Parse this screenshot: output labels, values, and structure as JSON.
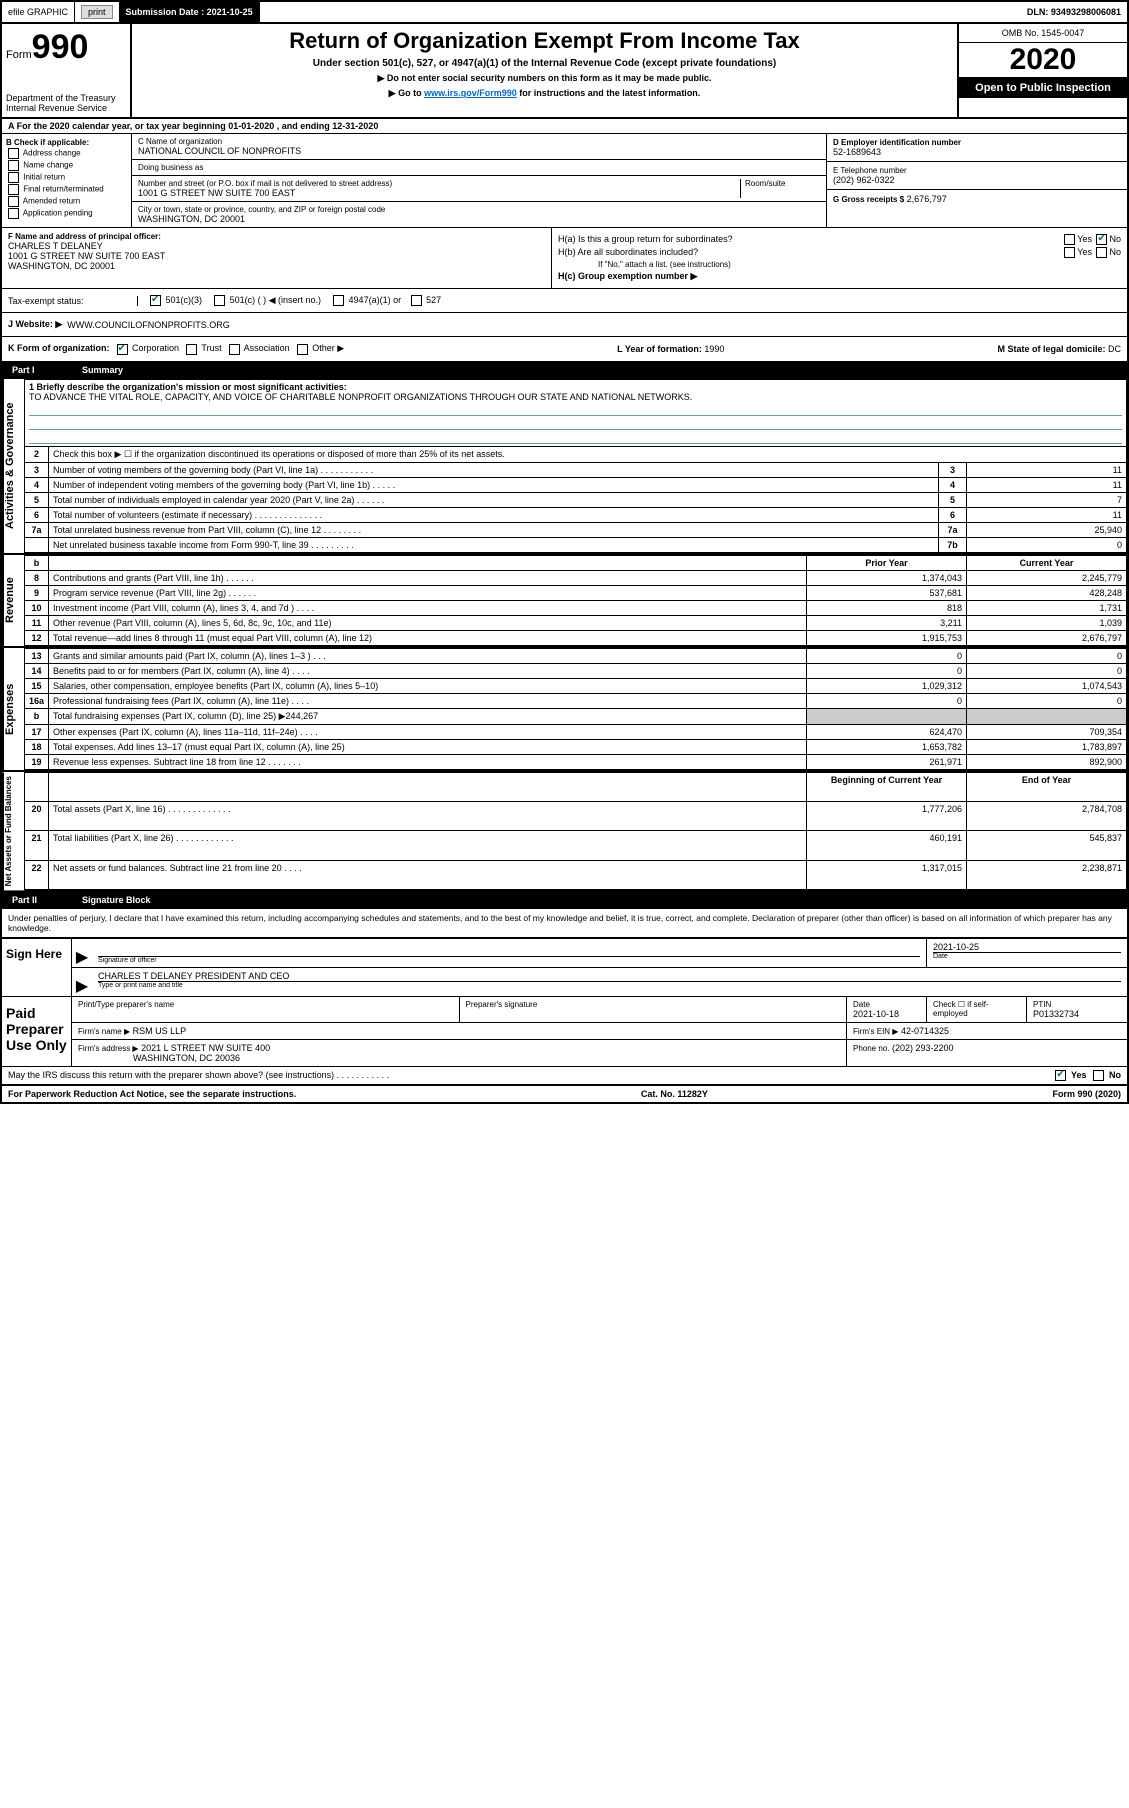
{
  "topbar": {
    "efile": "efile GRAPHIC",
    "print": "print",
    "submission_label": "Submission Date :",
    "submission_date": "2021-10-25",
    "dln_label": "DLN:",
    "dln": "93493298006081"
  },
  "header": {
    "form_prefix": "Form",
    "form_number": "990",
    "dept1": "Department of the Treasury",
    "dept2": "Internal Revenue Service",
    "title": "Return of Organization Exempt From Income Tax",
    "subtitle1": "Under section 501(c), 527, or 4947(a)(1) of the Internal Revenue Code (except private foundations)",
    "subtitle2": "Do not enter social security numbers on this form as it may be made public.",
    "subtitle3_pre": "Go to ",
    "subtitle3_link": "www.irs.gov/Form990",
    "subtitle3_post": " for instructions and the latest information.",
    "omb": "OMB No. 1545-0047",
    "year": "2020",
    "open": "Open to Public Inspection"
  },
  "row_a": "A For the 2020 calendar year, or tax year beginning 01-01-2020   , and ending 12-31-2020",
  "box_b": {
    "label": "B Check if applicable:",
    "opts": [
      "Address change",
      "Name change",
      "Initial return",
      "Final return/terminated",
      "Amended return",
      "Application pending"
    ]
  },
  "box_c": {
    "name_label": "C Name of organization",
    "name": "NATIONAL COUNCIL OF NONPROFITS",
    "dba_label": "Doing business as",
    "dba": "",
    "addr_label": "Number and street (or P.O. box if mail is not delivered to street address)",
    "room_label": "Room/suite",
    "addr": "1001 G STREET NW SUITE 700 EAST",
    "city_label": "City or town, state or province, country, and ZIP or foreign postal code",
    "city": "WASHINGTON, DC  20001"
  },
  "box_d": {
    "label": "D Employer identification number",
    "val": "52-1689643"
  },
  "box_e": {
    "label": "E Telephone number",
    "val": "(202) 962-0322"
  },
  "box_g": {
    "label": "G Gross receipts $",
    "val": "2,676,797"
  },
  "box_f": {
    "label": "F  Name and address of principal officer:",
    "name": "CHARLES T DELANEY",
    "addr1": "1001 G STREET NW SUITE 700 EAST",
    "addr2": "WASHINGTON, DC  20001"
  },
  "box_h": {
    "a_label": "H(a)  Is this a group return for subordinates?",
    "b_label": "H(b)  Are all subordinates included?",
    "b_note": "If \"No,\" attach a list. (see instructions)",
    "c_label": "H(c)  Group exemption number ▶",
    "yes": "Yes",
    "no": "No"
  },
  "tax_status": {
    "label": "Tax-exempt status:",
    "o1": "501(c)(3)",
    "o2": "501(c) (  ) ◀ (insert no.)",
    "o3": "4947(a)(1) or",
    "o4": "527"
  },
  "website": {
    "label": "J   Website: ▶",
    "val": "WWW.COUNCILOFNONPROFITS.ORG"
  },
  "row_k": {
    "label": "K Form of organization:",
    "opts": [
      "Corporation",
      "Trust",
      "Association",
      "Other ▶"
    ],
    "l_label": "L Year of formation:",
    "l_val": "1990",
    "m_label": "M State of legal domicile:",
    "m_val": "DC"
  },
  "part1": {
    "tag": "Part I",
    "title": "Summary"
  },
  "mission": {
    "q": "1  Briefly describe the organization's mission or most significant activities:",
    "text": "TO ADVANCE THE VITAL ROLE, CAPACITY, AND VOICE OF CHARITABLE NONPROFIT ORGANIZATIONS THROUGH OUR STATE AND NATIONAL NETWORKS."
  },
  "q2": "Check this box ▶ ☐  if the organization discontinued its operations or disposed of more than 25% of its net assets.",
  "activities_rows": [
    {
      "n": "3",
      "d": "Number of voting members of the governing body (Part VI, line 1a)  .  .  .  .  .  .  .  .  .  .  .",
      "ln": "3",
      "v": "11"
    },
    {
      "n": "4",
      "d": "Number of independent voting members of the governing body (Part VI, line 1b)  .  .  .  .  .",
      "ln": "4",
      "v": "11"
    },
    {
      "n": "5",
      "d": "Total number of individuals employed in calendar year 2020 (Part V, line 2a)  .  .  .  .  .  .",
      "ln": "5",
      "v": "7"
    },
    {
      "n": "6",
      "d": "Total number of volunteers (estimate if necessary)   .  .  .  .  .  .  .  .  .  .  .  .  .  .",
      "ln": "6",
      "v": "11"
    },
    {
      "n": "7a",
      "d": "Total unrelated business revenue from Part VIII, column (C), line 12  .  .  .  .  .  .  .  .",
      "ln": "7a",
      "v": "25,940"
    },
    {
      "n": "",
      "d": "Net unrelated business taxable income from Form 990-T, line 39  .  .  .  .  .  .  .  .  .",
      "ln": "7b",
      "v": "0"
    }
  ],
  "headrow": {
    "py": "Prior Year",
    "cy": "Current Year"
  },
  "revenue_rows": [
    {
      "n": "8",
      "d": "Contributions and grants (Part VIII, line 1h)  .  .  .  .  .  .",
      "py": "1,374,043",
      "cy": "2,245,779"
    },
    {
      "n": "9",
      "d": "Program service revenue (Part VIII, line 2g)  .  .  .  .  .  .",
      "py": "537,681",
      "cy": "428,248"
    },
    {
      "n": "10",
      "d": "Investment income (Part VIII, column (A), lines 3, 4, and 7d )  .  .  .  .",
      "py": "818",
      "cy": "1,731"
    },
    {
      "n": "11",
      "d": "Other revenue (Part VIII, column (A), lines 5, 6d, 8c, 9c, 10c, and 11e)",
      "py": "3,211",
      "cy": "1,039"
    },
    {
      "n": "12",
      "d": "Total revenue—add lines 8 through 11 (must equal Part VIII, column (A), line 12)",
      "py": "1,915,753",
      "cy": "2,676,797"
    }
  ],
  "expense_rows": [
    {
      "n": "13",
      "d": "Grants and similar amounts paid (Part IX, column (A), lines 1–3 )  .  .  .",
      "py": "0",
      "cy": "0"
    },
    {
      "n": "14",
      "d": "Benefits paid to or for members (Part IX, column (A), line 4)  .  .  .  .",
      "py": "0",
      "cy": "0"
    },
    {
      "n": "15",
      "d": "Salaries, other compensation, employee benefits (Part IX, column (A), lines 5–10)",
      "py": "1,029,312",
      "cy": "1,074,543"
    },
    {
      "n": "16a",
      "d": "Professional fundraising fees (Part IX, column (A), line 11e)  .  .  .  .",
      "py": "0",
      "cy": "0"
    },
    {
      "n": "b",
      "d": "Total fundraising expenses (Part IX, column (D), line 25) ▶244,267",
      "py": "",
      "cy": "",
      "shade": true
    },
    {
      "n": "17",
      "d": "Other expenses (Part IX, column (A), lines 11a–11d, 11f–24e)  .  .  .  .",
      "py": "624,470",
      "cy": "709,354"
    },
    {
      "n": "18",
      "d": "Total expenses. Add lines 13–17 (must equal Part IX, column (A), line 25)",
      "py": "1,653,782",
      "cy": "1,783,897"
    },
    {
      "n": "19",
      "d": "Revenue less expenses. Subtract line 18 from line 12  .  .  .  .  .  .  .",
      "py": "261,971",
      "cy": "892,900"
    }
  ],
  "net_head": {
    "b": "Beginning of Current Year",
    "e": "End of Year"
  },
  "net_rows": [
    {
      "n": "20",
      "d": "Total assets (Part X, line 16)  .  .  .  .  .  .  .  .  .  .  .  .  .",
      "py": "1,777,206",
      "cy": "2,784,708"
    },
    {
      "n": "21",
      "d": "Total liabilities (Part X, line 26)  .  .  .  .  .  .  .  .  .  .  .  .",
      "py": "460,191",
      "cy": "545,837"
    },
    {
      "n": "22",
      "d": "Net assets or fund balances. Subtract line 21 from line 20  .  .  .  .",
      "py": "1,317,015",
      "cy": "2,238,871"
    }
  ],
  "part2": {
    "tag": "Part II",
    "title": "Signature Block"
  },
  "penalty": "Under penalties of perjury, I declare that I have examined this return, including accompanying schedules and statements, and to the best of my knowledge and belief, it is true, correct, and complete. Declaration of preparer (other than officer) is based on all information of which preparer has any knowledge.",
  "sign": {
    "here": "Sign Here",
    "sig_label": "Signature of officer",
    "date_label": "Date",
    "date": "2021-10-25",
    "name": "CHARLES T DELANEY  PRESIDENT AND CEO",
    "name_label": "Type or print name and title"
  },
  "preparer": {
    "title": "Paid Preparer Use Only",
    "h1": "Print/Type preparer's name",
    "h2": "Preparer's signature",
    "h3": "Date",
    "h4": "Check ☐ if self-employed",
    "h5": "PTIN",
    "date": "2021-10-18",
    "ptin": "P01332734",
    "firm_label": "Firm's name   ▶",
    "firm": "RSM US LLP",
    "ein_label": "Firm's EIN ▶",
    "ein": "42-0714325",
    "addr_label": "Firm's address ▶",
    "addr": "2021 L STREET NW SUITE 400",
    "addr2": "WASHINGTON, DC  20036",
    "phone_label": "Phone no.",
    "phone": "(202) 293-2200"
  },
  "discuss": {
    "q": "May the IRS discuss this return with the preparer shown above? (see instructions)  .  .  .  .  .  .  .  .  .  .  .",
    "yes": "Yes",
    "no": "No"
  },
  "footer": {
    "left": "For Paperwork Reduction Act Notice, see the separate instructions.",
    "mid": "Cat. No. 11282Y",
    "right": "Form 990 (2020)"
  },
  "side_labels": {
    "act": "Activities & Governance",
    "rev": "Revenue",
    "exp": "Expenses",
    "net": "Net Assets or Fund Balances"
  }
}
